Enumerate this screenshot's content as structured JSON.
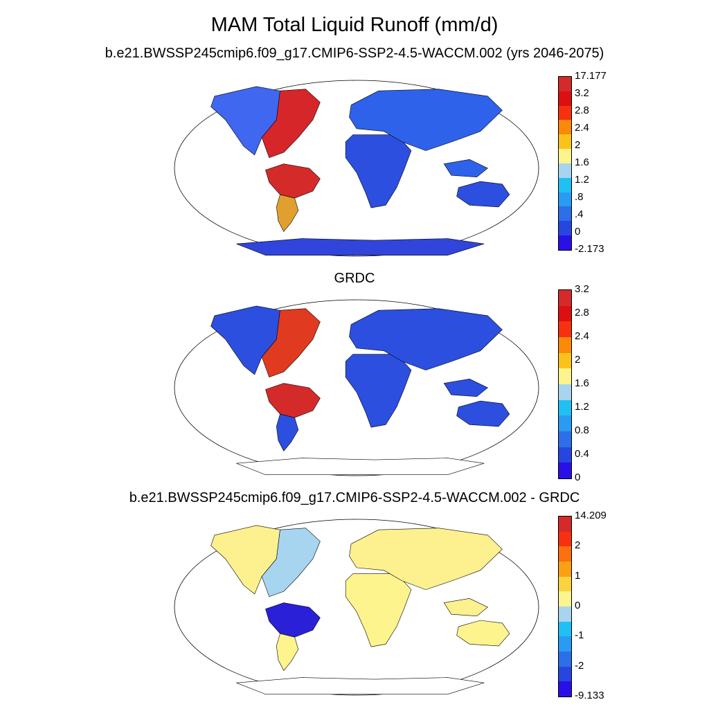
{
  "title": "MAM Total Liquid Runoff (mm/d)",
  "panels": [
    {
      "title": "b.e21.BWSSP245cmip6.f09_g17.CMIP6-SSP2-4.5-WACCM.002 (yrs 2046-2075)",
      "colorbar": {
        "colors": [
          "#2a10e6",
          "#2746e0",
          "#2c6fe8",
          "#2a9bf3",
          "#20c0f4",
          "#a7d5f0",
          "#fdf48e",
          "#fbc21a",
          "#fb8a0a",
          "#f83010",
          "#de0f10",
          "#d52a2a"
        ],
        "labels": [
          "-2.173",
          "0",
          ".4",
          ".8",
          "1.2",
          "1.6",
          "2",
          "2.4",
          "2.8",
          "3.2",
          "17.177"
        ]
      },
      "regions": [
        {
          "name": "north-america-west",
          "color": "#3f67f0"
        },
        {
          "name": "north-america-east",
          "color": "#d7262a"
        },
        {
          "name": "amazon",
          "color": "#d52a2a"
        },
        {
          "name": "africa",
          "color": "#2c4fe0"
        },
        {
          "name": "eurasia",
          "color": "#2e62ea"
        },
        {
          "name": "australia",
          "color": "#2c4fe0"
        },
        {
          "name": "antarctica",
          "color": "#3145dc"
        }
      ]
    },
    {
      "title": "GRDC",
      "colorbar": {
        "colors": [
          "#2a10e6",
          "#2746e0",
          "#2c6fe8",
          "#2a9bf3",
          "#20c0f4",
          "#a7d5f0",
          "#fdf48e",
          "#fbc21a",
          "#fb8a0a",
          "#f83010",
          "#de0f10",
          "#d52a2a"
        ],
        "labels": [
          "0",
          "0.4",
          "0.8",
          "1.2",
          "1.6",
          "2",
          "2.4",
          "2.8",
          "3.2"
        ]
      },
      "regions": [
        {
          "name": "north-america-west",
          "color": "#2c4fe0"
        },
        {
          "name": "north-america-east",
          "color": "#e03a20"
        },
        {
          "name": "amazon",
          "color": "#d52a2a"
        },
        {
          "name": "africa",
          "color": "#2c4fe0"
        },
        {
          "name": "eurasia",
          "color": "#2c4fe0"
        },
        {
          "name": "australia",
          "color": "#2c4fe0"
        },
        {
          "name": "antarctica",
          "color": "#ffffff"
        }
      ]
    },
    {
      "title": "b.e21.BWSSP245cmip6.f09_g17.CMIP6-SSP2-4.5-WACCM.002 - GRDC",
      "colorbar": {
        "colors": [
          "#2a10e6",
          "#2746e0",
          "#2c6fe8",
          "#2a9bf3",
          "#20c0f4",
          "#a7d5f0",
          "#fdf48e",
          "#fbd240",
          "#fba012",
          "#fb7010",
          "#f83010",
          "#d52a2a"
        ],
        "labels": [
          "-9.133",
          "-2",
          "-1",
          "0",
          "1",
          "2",
          "14.209"
        ]
      },
      "regions": [
        {
          "name": "north-america-west",
          "color": "#fdf08e"
        },
        {
          "name": "north-america-east",
          "color": "#a7d5f0"
        },
        {
          "name": "amazon",
          "color": "#2a20d8"
        },
        {
          "name": "africa",
          "color": "#fdf48e"
        },
        {
          "name": "eurasia",
          "color": "#fdf08e"
        },
        {
          "name": "australia",
          "color": "#fdf48e"
        },
        {
          "name": "antarctica",
          "color": "#ffffff"
        }
      ]
    }
  ]
}
